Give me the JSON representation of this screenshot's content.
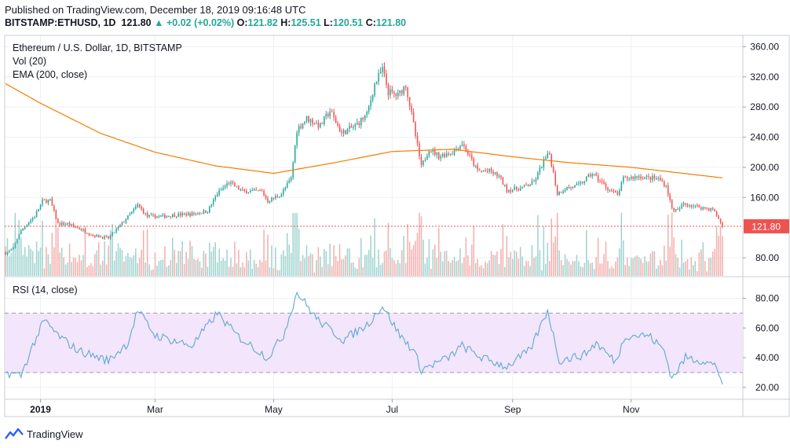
{
  "header": {
    "published": "Published on TradingView.com, December 18, 2019 09:16:48 UTC",
    "symbol": "BITSTAMP:ETHUSD, 1D",
    "price": "121.80",
    "change": "+0.02 (+0.02%)",
    "o_label": "O:",
    "o_value": "121.82",
    "h_label": "H:",
    "h_value": "125.51",
    "l_label": "L:",
    "l_value": "120.51",
    "c_label": "C:",
    "c_value": "121.80"
  },
  "legend": {
    "title": "Ethereum / U.S. Dollar, 1D, BITSTAMP",
    "vol": "Vol (20)",
    "ema": "EMA (200, close)",
    "rsi": "RSI (14, close)"
  },
  "footer": {
    "brand": "TradingView"
  },
  "colors": {
    "up": "#26a69a",
    "down": "#ef5350",
    "ema": "#f57c00",
    "rsi": "#5fa8d3",
    "rsi_band": "#f3e5fb",
    "vol_up": "#9fd4cf",
    "vol_down": "#f3b0ae",
    "last_price": "#ef5350"
  },
  "chart_data": [
    {
      "type": "candlestick",
      "title": "Ethereum / U.S. Dollar, 1D, BITSTAMP",
      "ylim": [
        55,
        375
      ],
      "y_ticks": [
        "360.00",
        "320.00",
        "280.00",
        "240.00",
        "200.00",
        "160.00",
        "80.00"
      ],
      "x_ticks": [
        "2019",
        "Mar",
        "May",
        "Jul",
        "Sep",
        "Nov"
      ],
      "last_price": 121.8,
      "last_price_label": "121.80",
      "close_anchors": [
        {
          "date": "2018-12-14",
          "close": 86
        },
        {
          "date": "2018-12-18",
          "close": 92
        },
        {
          "date": "2018-12-21",
          "close": 112
        },
        {
          "date": "2018-12-25",
          "close": 125
        },
        {
          "date": "2018-12-29",
          "close": 135
        },
        {
          "date": "2019-01-02",
          "close": 155
        },
        {
          "date": "2019-01-06",
          "close": 156
        },
        {
          "date": "2019-01-10",
          "close": 125
        },
        {
          "date": "2019-01-15",
          "close": 125
        },
        {
          "date": "2019-01-20",
          "close": 120
        },
        {
          "date": "2019-01-28",
          "close": 110
        },
        {
          "date": "2019-02-05",
          "close": 106
        },
        {
          "date": "2019-02-10",
          "close": 120
        },
        {
          "date": "2019-02-17",
          "close": 140
        },
        {
          "date": "2019-02-20",
          "close": 150
        },
        {
          "date": "2019-02-25",
          "close": 135
        },
        {
          "date": "2019-03-05",
          "close": 135
        },
        {
          "date": "2019-03-12",
          "close": 137
        },
        {
          "date": "2019-03-20",
          "close": 138
        },
        {
          "date": "2019-03-28",
          "close": 142
        },
        {
          "date": "2019-04-02",
          "close": 165
        },
        {
          "date": "2019-04-08",
          "close": 180
        },
        {
          "date": "2019-04-15",
          "close": 168
        },
        {
          "date": "2019-04-25",
          "close": 168
        },
        {
          "date": "2019-04-28",
          "close": 155
        },
        {
          "date": "2019-05-05",
          "close": 165
        },
        {
          "date": "2019-05-10",
          "close": 185
        },
        {
          "date": "2019-05-13",
          "close": 250
        },
        {
          "date": "2019-05-18",
          "close": 265
        },
        {
          "date": "2019-05-25",
          "close": 255
        },
        {
          "date": "2019-05-30",
          "close": 275
        },
        {
          "date": "2019-06-05",
          "close": 245
        },
        {
          "date": "2019-06-12",
          "close": 255
        },
        {
          "date": "2019-06-18",
          "close": 270
        },
        {
          "date": "2019-06-22",
          "close": 310
        },
        {
          "date": "2019-06-26",
          "close": 330
        },
        {
          "date": "2019-06-29",
          "close": 300
        },
        {
          "date": "2019-07-04",
          "close": 295
        },
        {
          "date": "2019-07-08",
          "close": 310
        },
        {
          "date": "2019-07-11",
          "close": 270
        },
        {
          "date": "2019-07-16",
          "close": 200
        },
        {
          "date": "2019-07-20",
          "close": 225
        },
        {
          "date": "2019-07-25",
          "close": 215
        },
        {
          "date": "2019-08-01",
          "close": 220
        },
        {
          "date": "2019-08-06",
          "close": 232
        },
        {
          "date": "2019-08-14",
          "close": 195
        },
        {
          "date": "2019-08-20",
          "close": 195
        },
        {
          "date": "2019-08-25",
          "close": 188
        },
        {
          "date": "2019-08-29",
          "close": 170
        },
        {
          "date": "2019-09-05",
          "close": 172
        },
        {
          "date": "2019-09-12",
          "close": 180
        },
        {
          "date": "2019-09-17",
          "close": 208
        },
        {
          "date": "2019-09-20",
          "close": 218
        },
        {
          "date": "2019-09-24",
          "close": 165
        },
        {
          "date": "2019-09-28",
          "close": 172
        },
        {
          "date": "2019-10-05",
          "close": 176
        },
        {
          "date": "2019-10-12",
          "close": 192
        },
        {
          "date": "2019-10-20",
          "close": 172
        },
        {
          "date": "2019-10-25",
          "close": 163
        },
        {
          "date": "2019-10-28",
          "close": 185
        },
        {
          "date": "2019-11-05",
          "close": 188
        },
        {
          "date": "2019-11-10",
          "close": 186
        },
        {
          "date": "2019-11-15",
          "close": 185
        },
        {
          "date": "2019-11-19",
          "close": 176
        },
        {
          "date": "2019-11-22",
          "close": 145
        },
        {
          "date": "2019-11-25",
          "close": 142
        },
        {
          "date": "2019-11-28",
          "close": 152
        },
        {
          "date": "2019-12-05",
          "close": 148
        },
        {
          "date": "2019-12-13",
          "close": 144
        },
        {
          "date": "2019-12-16",
          "close": 132
        },
        {
          "date": "2019-12-18",
          "close": 121.8
        }
      ],
      "ema_anchors": [
        {
          "date": "2018-12-14",
          "value": 311
        },
        {
          "date": "2019-01-01",
          "value": 285
        },
        {
          "date": "2019-02-01",
          "value": 245
        },
        {
          "date": "2019-03-01",
          "value": 220
        },
        {
          "date": "2019-04-01",
          "value": 202
        },
        {
          "date": "2019-05-01",
          "value": 192
        },
        {
          "date": "2019-06-01",
          "value": 206
        },
        {
          "date": "2019-07-01",
          "value": 221
        },
        {
          "date": "2019-08-01",
          "value": 224
        },
        {
          "date": "2019-09-01",
          "value": 214
        },
        {
          "date": "2019-10-01",
          "value": 206
        },
        {
          "date": "2019-11-01",
          "value": 200
        },
        {
          "date": "2019-12-18",
          "value": 186
        }
      ]
    },
    {
      "type": "line",
      "title": "RSI (14, close)",
      "ylim": [
        12,
        94
      ],
      "y_ticks": [
        "80.00",
        "60.00",
        "40.00",
        "20.00"
      ],
      "band": [
        30,
        70
      ],
      "anchors": [
        {
          "date": "2018-12-14",
          "value": 30
        },
        {
          "date": "2018-12-22",
          "value": 28
        },
        {
          "date": "2018-12-28",
          "value": 48
        },
        {
          "date": "2019-01-03",
          "value": 65
        },
        {
          "date": "2019-01-10",
          "value": 55
        },
        {
          "date": "2019-01-20",
          "value": 45
        },
        {
          "date": "2019-02-05",
          "value": 38
        },
        {
          "date": "2019-02-15",
          "value": 50
        },
        {
          "date": "2019-02-20",
          "value": 72
        },
        {
          "date": "2019-03-01",
          "value": 55
        },
        {
          "date": "2019-03-20",
          "value": 48
        },
        {
          "date": "2019-04-02",
          "value": 70
        },
        {
          "date": "2019-04-12",
          "value": 55
        },
        {
          "date": "2019-04-28",
          "value": 40
        },
        {
          "date": "2019-05-06",
          "value": 55
        },
        {
          "date": "2019-05-13",
          "value": 84
        },
        {
          "date": "2019-05-24",
          "value": 65
        },
        {
          "date": "2019-06-06",
          "value": 52
        },
        {
          "date": "2019-06-18",
          "value": 62
        },
        {
          "date": "2019-06-26",
          "value": 75
        },
        {
          "date": "2019-07-05",
          "value": 55
        },
        {
          "date": "2019-07-12",
          "value": 45
        },
        {
          "date": "2019-07-16",
          "value": 32
        },
        {
          "date": "2019-07-30",
          "value": 40
        },
        {
          "date": "2019-08-06",
          "value": 48
        },
        {
          "date": "2019-08-16",
          "value": 40
        },
        {
          "date": "2019-08-29",
          "value": 34
        },
        {
          "date": "2019-09-10",
          "value": 45
        },
        {
          "date": "2019-09-19",
          "value": 72
        },
        {
          "date": "2019-09-25",
          "value": 38
        },
        {
          "date": "2019-10-08",
          "value": 42
        },
        {
          "date": "2019-10-14",
          "value": 50
        },
        {
          "date": "2019-10-24",
          "value": 37
        },
        {
          "date": "2019-10-29",
          "value": 55
        },
        {
          "date": "2019-11-10",
          "value": 55
        },
        {
          "date": "2019-11-18",
          "value": 45
        },
        {
          "date": "2019-11-22",
          "value": 26
        },
        {
          "date": "2019-11-29",
          "value": 40
        },
        {
          "date": "2019-12-08",
          "value": 38
        },
        {
          "date": "2019-12-15",
          "value": 34
        },
        {
          "date": "2019-12-18",
          "value": 22
        }
      ]
    }
  ]
}
